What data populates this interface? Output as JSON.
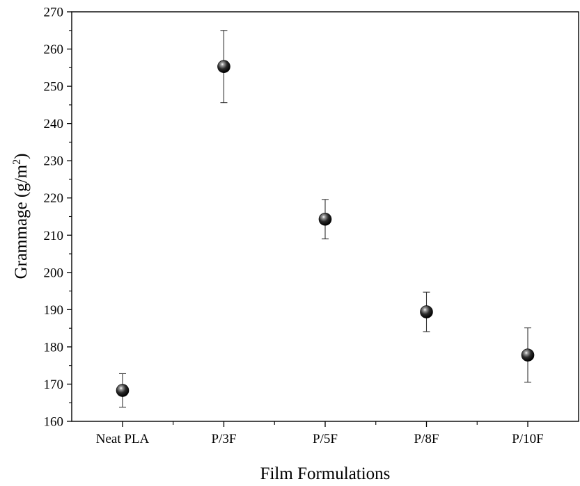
{
  "chart_data": {
    "type": "scatter",
    "title": "",
    "xlabel": "Film Formulations",
    "ylabel": "Grammage (g/m²)",
    "ylabel_parts": {
      "main": "Grammage (g/m",
      "sup": "2",
      "end": ")"
    },
    "categories": [
      "Neat PLA",
      "P/3F",
      "P/5F",
      "P/8F",
      "P/10F"
    ],
    "values": [
      168.3,
      255.3,
      214.3,
      189.4,
      177.8
    ],
    "error_upper": [
      172.8,
      265.0,
      219.6,
      194.7,
      185.1
    ],
    "error_lower": [
      163.8,
      245.6,
      209.0,
      184.1,
      170.5
    ],
    "ylim": [
      160,
      270
    ],
    "yticks": [
      160,
      170,
      180,
      190,
      200,
      210,
      220,
      230,
      240,
      250,
      260,
      270
    ],
    "ytick_labels": [
      "160",
      "170",
      "180",
      "190",
      "200",
      "210",
      "220",
      "230",
      "240",
      "250",
      "260",
      "270"
    ],
    "grid": false,
    "legend": "none",
    "marker_color": "#000000"
  }
}
